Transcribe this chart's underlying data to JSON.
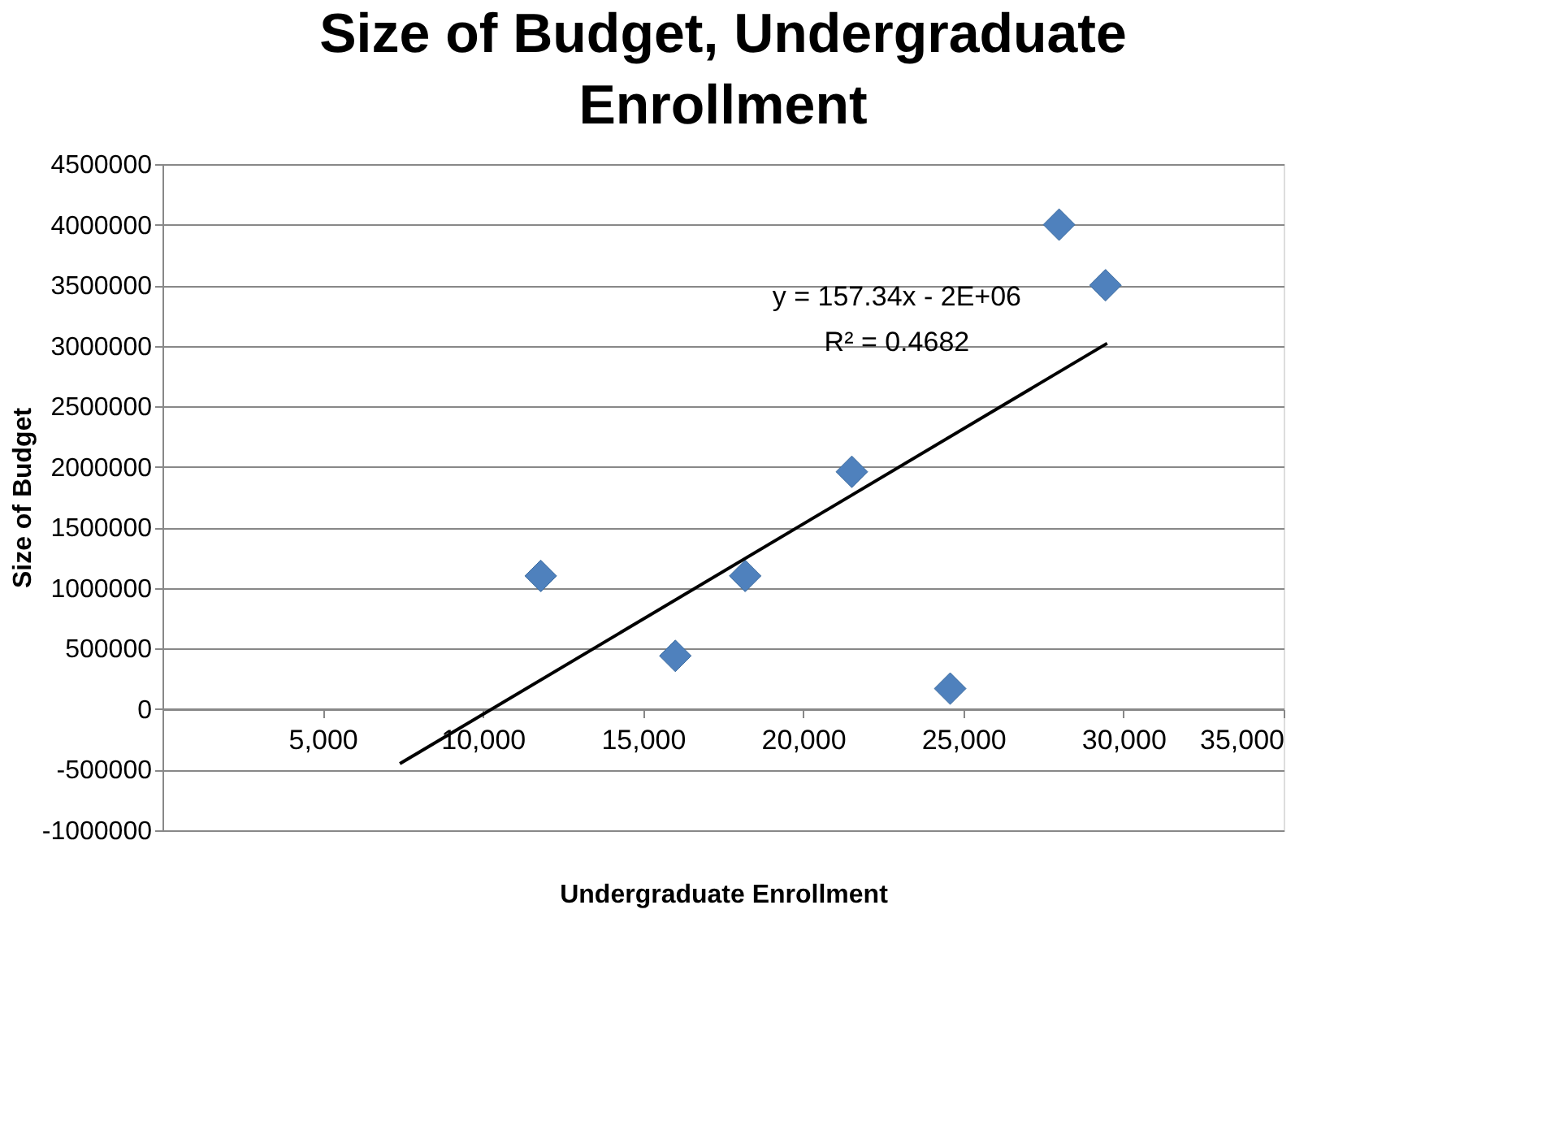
{
  "chart_data": {
    "type": "scatter",
    "title": "Size of Budget, Undergraduate Enrollment",
    "xlabel": "Undergraduate Enrollment",
    "ylabel": "Size of Budget",
    "series": [
      {
        "type": "scatter",
        "color": "#4f81bd",
        "marker": "diamond",
        "x": [
          11810,
          16010,
          18190,
          21520,
          24590,
          27990,
          29440
        ],
        "values": [
          1100000,
          440000,
          1100000,
          1960000,
          170000,
          4000000,
          3500000
        ]
      },
      {
        "type": "line",
        "color": "#000000",
        "marker": "none",
        "line_style": "solid",
        "x": [
          7410,
          29490
        ],
        "values": [
          -450000,
          3020000
        ]
      }
    ],
    "annotations": [
      "y = 157.34x - 2E+06",
      "R² = 0.4682"
    ],
    "xlim": [
      0,
      35000
    ],
    "xticks": [
      {
        "value": 5000,
        "label": "5,000"
      },
      {
        "value": 10000,
        "label": "10,000"
      },
      {
        "value": 15000,
        "label": "15,000"
      },
      {
        "value": 20000,
        "label": "20,000"
      },
      {
        "value": 25000,
        "label": "25,000"
      },
      {
        "value": 30000,
        "label": "30,000"
      },
      {
        "value": 35000,
        "label": "35,000"
      }
    ],
    "ylim": [
      -1000000,
      4500000
    ],
    "yticks": [
      -1000000,
      -500000,
      0,
      500000,
      1000000,
      1500000,
      2000000,
      2500000,
      3000000,
      3500000,
      4000000,
      4500000
    ],
    "grid": "y"
  }
}
